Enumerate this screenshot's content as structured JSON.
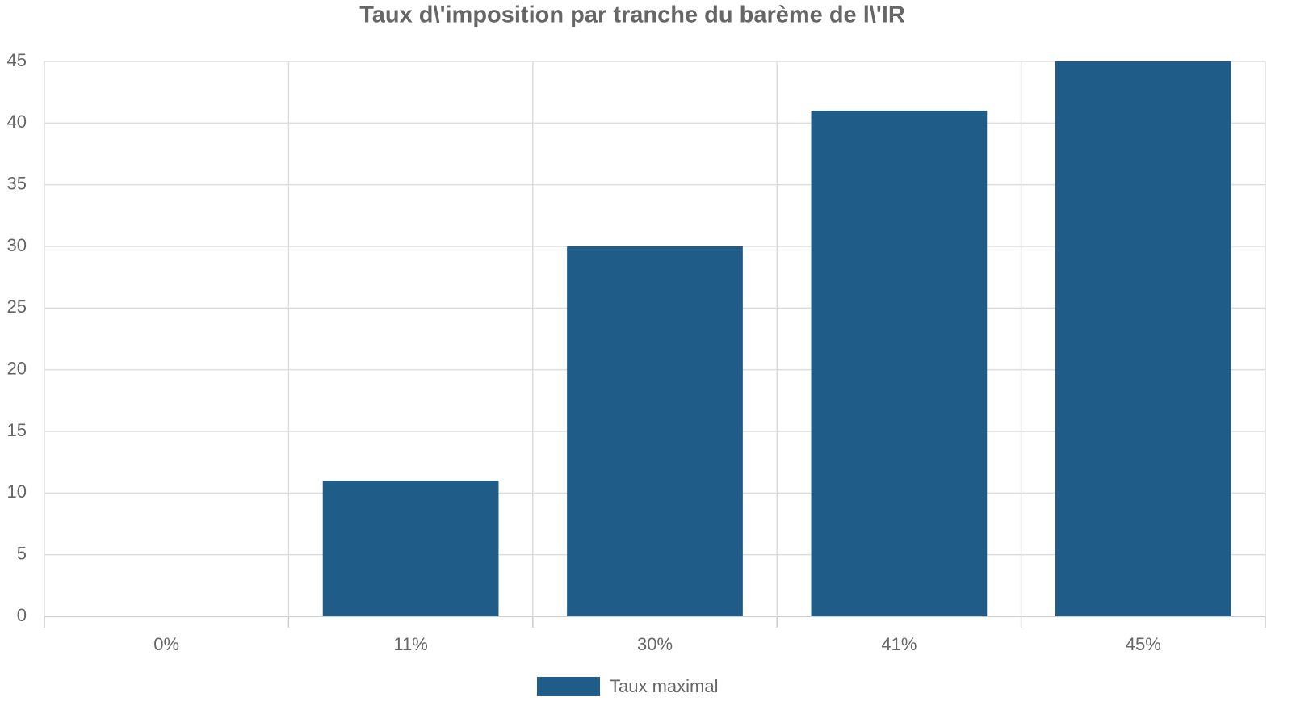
{
  "chart_data": {
    "type": "bar",
    "title": "Taux d\\'imposition par tranche du barème de l\\'IR",
    "categories": [
      "0%",
      "11%",
      "30%",
      "41%",
      "45%"
    ],
    "series": [
      {
        "name": "Taux maximal",
        "color": "#1f5c87",
        "values": [
          0,
          11,
          30,
          41,
          45
        ]
      }
    ],
    "ylim": [
      0,
      45
    ],
    "yticks": [
      0,
      5,
      10,
      15,
      20,
      25,
      30,
      35,
      40,
      45
    ],
    "grid": true,
    "legend": "bottom"
  }
}
